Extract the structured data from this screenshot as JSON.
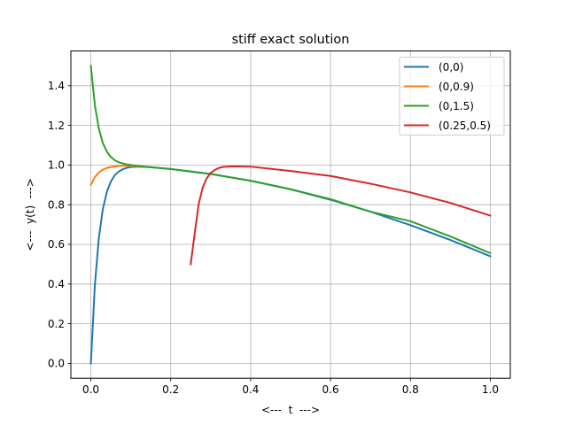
{
  "chart_data": {
    "type": "line",
    "title": "stiff exact solution",
    "xlabel": "<---  t  --->",
    "ylabel": "<---  y(t)  --->",
    "xlim": [
      -0.05,
      1.05
    ],
    "ylim": [
      -0.075,
      1.575
    ],
    "xticks": [
      0.0,
      0.2,
      0.4,
      0.6,
      0.8,
      1.0
    ],
    "xtick_labels": [
      "0.0",
      "0.2",
      "0.4",
      "0.6",
      "0.8",
      "1.0"
    ],
    "yticks": [
      0.0,
      0.2,
      0.4,
      0.6,
      0.8,
      1.0,
      1.2,
      1.4
    ],
    "ytick_labels": [
      "0.0",
      "0.2",
      "0.4",
      "0.6",
      "0.8",
      "1.0",
      "1.2",
      "1.4"
    ],
    "grid": true,
    "legend_position": "top-right",
    "series": [
      {
        "name": "(0,0)",
        "color": "#1f77b4",
        "x": [
          0.0,
          0.01,
          0.02,
          0.03,
          0.04,
          0.05,
          0.06,
          0.07,
          0.08,
          0.09,
          0.1,
          0.12,
          0.15,
          0.2,
          0.3,
          0.4,
          0.5,
          0.6,
          0.7,
          0.8,
          0.9,
          1.0
        ],
        "y": [
          0.0,
          0.393,
          0.632,
          0.777,
          0.864,
          0.917,
          0.949,
          0.968,
          0.979,
          0.986,
          0.99,
          0.992,
          0.989,
          0.98,
          0.955,
          0.921,
          0.878,
          0.825,
          0.765,
          0.697,
          0.622,
          0.54
        ]
      },
      {
        "name": "(0,0.9)",
        "color": "#ff7f0e",
        "x": [
          0.0,
          0.01,
          0.02,
          0.03,
          0.04,
          0.05,
          0.06,
          0.07,
          0.08,
          0.09,
          0.1,
          0.12,
          0.15
        ],
        "y": [
          0.9,
          0.939,
          0.963,
          0.977,
          0.985,
          0.99,
          0.993,
          0.995,
          0.996,
          0.996,
          0.995,
          0.993,
          0.989
        ]
      },
      {
        "name": "(0,1.5)",
        "color": "#2ca02c",
        "x": [
          0.0,
          0.01,
          0.02,
          0.03,
          0.04,
          0.05,
          0.06,
          0.07,
          0.08,
          0.09,
          0.1,
          0.12,
          0.15,
          0.2,
          0.3,
          0.4,
          0.5,
          0.6,
          0.7,
          0.8,
          0.9,
          1.0
        ],
        "y": [
          1.5,
          1.303,
          1.184,
          1.111,
          1.068,
          1.041,
          1.024,
          1.014,
          1.008,
          1.003,
          1.0,
          0.995,
          0.989,
          0.98,
          0.955,
          0.921,
          0.878,
          0.828,
          0.765,
          0.717,
          0.64,
          0.556
        ]
      },
      {
        "name": "(0.25,0.5)",
        "color": "#d62728",
        "x": [
          0.25,
          0.26,
          0.27,
          0.28,
          0.29,
          0.3,
          0.31,
          0.32,
          0.33,
          0.34,
          0.35,
          0.37,
          0.4,
          0.5,
          0.6,
          0.7,
          0.8,
          0.9,
          1.0
        ],
        "y": [
          0.5,
          0.656,
          0.804,
          0.886,
          0.933,
          0.96,
          0.975,
          0.985,
          0.99,
          0.992,
          0.993,
          0.993,
          0.992,
          0.97,
          0.945,
          0.906,
          0.862,
          0.809,
          0.745
        ]
      }
    ]
  }
}
